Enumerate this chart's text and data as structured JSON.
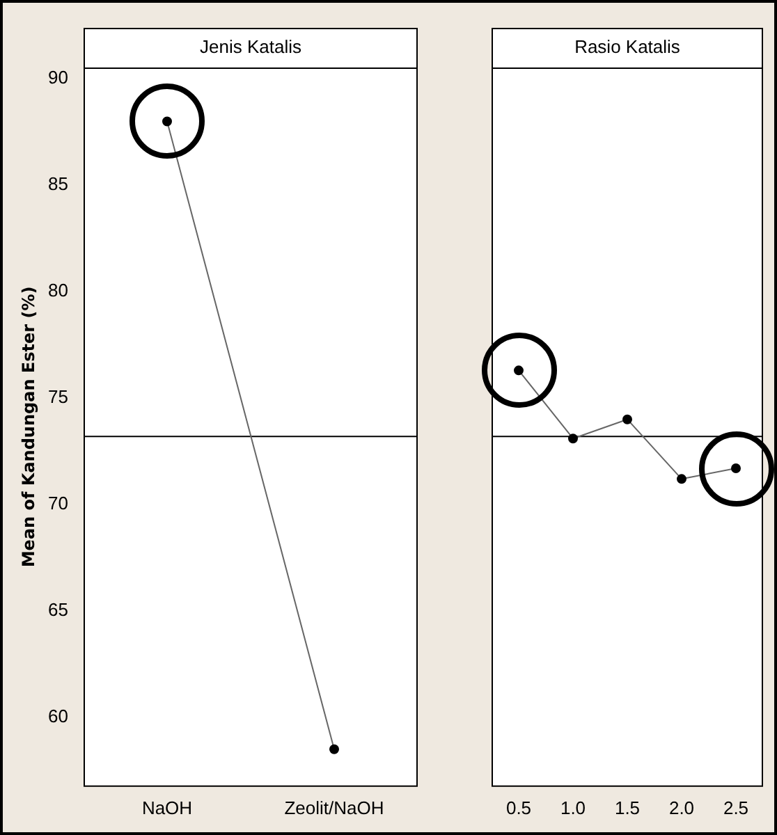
{
  "chart_data": [
    {
      "type": "line",
      "title": "Jenis Katalis",
      "ylabel": "Mean of Kandungan Ester (%)",
      "categories": [
        "NaOH",
        "Zeolit/NaOH"
      ],
      "series": [
        {
          "color": "#000000",
          "values": [
            88.0,
            58.5
          ]
        }
      ],
      "ylim": [
        56.8,
        90.5
      ],
      "yticks": [
        60,
        65,
        70,
        75,
        80,
        85,
        90
      ],
      "grid": false,
      "legend": false,
      "marker": "circle",
      "line_style": "solid",
      "ref_lines": [
        {
          "axis": "y",
          "value": 73.2,
          "color": "#000000"
        }
      ]
    },
    {
      "type": "line",
      "title": "Rasio Katalis",
      "categories": [
        "0.5",
        "1.0",
        "1.5",
        "2.0",
        "2.5"
      ],
      "series": [
        {
          "color": "#000000",
          "values": [
            76.3,
            73.1,
            74.0,
            71.2,
            71.7
          ]
        }
      ],
      "ylim": [
        56.8,
        90.5
      ],
      "yticks": [
        60,
        65,
        70,
        75,
        80,
        85,
        90
      ],
      "tick_labels": "x",
      "grid": false,
      "legend": false,
      "marker": "circle",
      "line_style": "solid",
      "ref_lines": [
        {
          "axis": "y",
          "value": 73.2,
          "color": "#000000"
        }
      ]
    }
  ]
}
